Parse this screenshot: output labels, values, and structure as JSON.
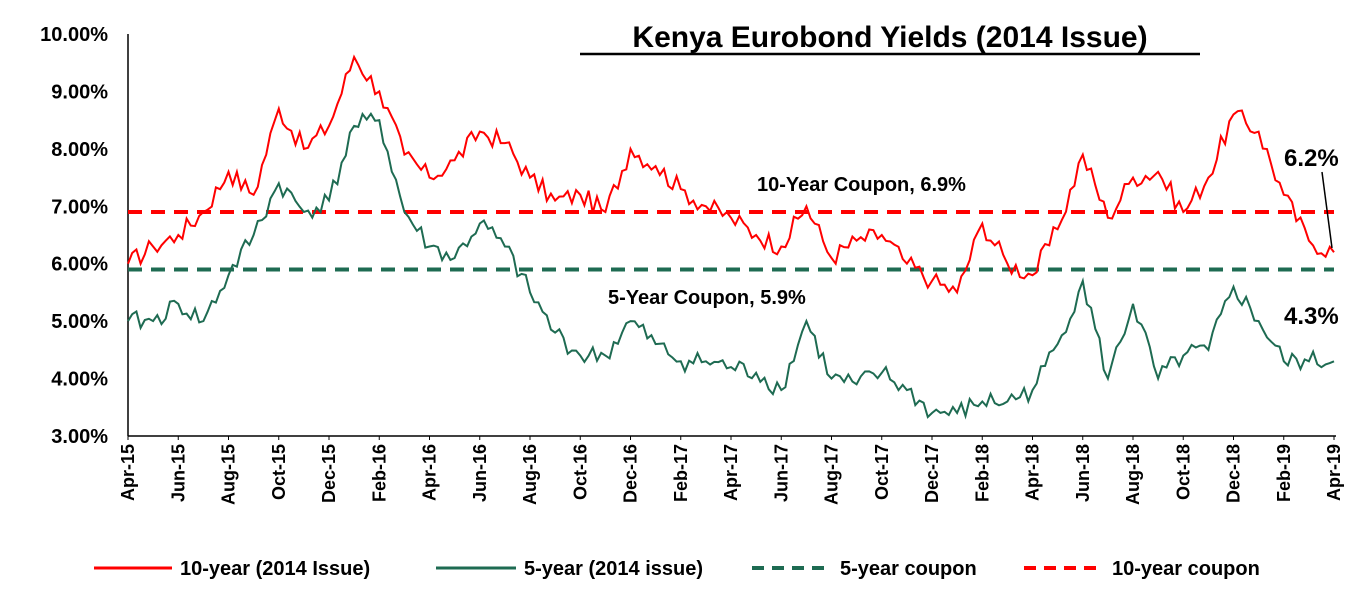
{
  "chart_data": {
    "type": "line",
    "title": "Kenya Eurobond  Yields (2014 Issue)",
    "xlabel": "",
    "ylabel": "",
    "ylim": [
      3.0,
      10.0
    ],
    "y_ticks": [
      "3.00%",
      "4.00%",
      "5.00%",
      "6.00%",
      "7.00%",
      "8.00%",
      "9.00%",
      "10.00%"
    ],
    "x_ticks": [
      "Apr-15",
      "Jun-15",
      "Aug-15",
      "Oct-15",
      "Dec-15",
      "Feb-16",
      "Apr-16",
      "Jun-16",
      "Aug-16",
      "Oct-16",
      "Dec-16",
      "Feb-17",
      "Apr-17",
      "Jun-17",
      "Aug-17",
      "Oct-17",
      "Dec-17",
      "Feb-18",
      "Apr-18",
      "Jun-18",
      "Aug-18",
      "Oct-18",
      "Dec-18",
      "Feb-19",
      "Apr-19"
    ],
    "grid": false,
    "legend_position": "bottom",
    "series": [
      {
        "name": "10-year (2014 Issue)",
        "color": "#ff0000",
        "style": "solid",
        "x": [
          "Apr-15",
          "May-15",
          "Jun-15",
          "Jul-15",
          "Aug-15",
          "Sep-15",
          "Oct-15",
          "Nov-15",
          "Dec-15",
          "Jan-16",
          "Feb-16",
          "Mar-16",
          "Apr-16",
          "May-16",
          "Jun-16",
          "Jul-16",
          "Aug-16",
          "Sep-16",
          "Oct-16",
          "Nov-16",
          "Dec-16",
          "Jan-17",
          "Feb-17",
          "Mar-17",
          "Apr-17",
          "May-17",
          "Jun-17",
          "Jul-17",
          "Aug-17",
          "Sep-17",
          "Oct-17",
          "Nov-17",
          "Dec-17",
          "Jan-18",
          "Feb-18",
          "Mar-18",
          "Apr-18",
          "May-18",
          "Jun-18",
          "Jul-18",
          "Aug-18",
          "Sep-18",
          "Oct-18",
          "Nov-18",
          "Dec-18",
          "Jan-19",
          "Feb-19",
          "Mar-19",
          "Apr-19"
        ],
        "values": [
          6.0,
          6.3,
          6.5,
          6.9,
          7.6,
          7.2,
          8.7,
          8.0,
          8.4,
          9.6,
          9.0,
          7.9,
          7.5,
          7.8,
          8.3,
          8.1,
          7.5,
          7.1,
          7.2,
          6.9,
          8.0,
          7.7,
          7.3,
          7.0,
          6.8,
          6.5,
          6.3,
          7.0,
          6.1,
          6.4,
          6.5,
          6.0,
          5.7,
          5.5,
          6.7,
          6.0,
          5.8,
          6.6,
          7.9,
          6.8,
          7.5,
          7.6,
          6.9,
          7.5,
          8.6,
          8.3,
          7.2,
          6.4,
          6.2
        ]
      },
      {
        "name": "5-year (2014 issue)",
        "color": "#1e6b52",
        "style": "solid",
        "x": [
          "Apr-15",
          "May-15",
          "Jun-15",
          "Jul-15",
          "Aug-15",
          "Sep-15",
          "Oct-15",
          "Nov-15",
          "Dec-15",
          "Jan-16",
          "Feb-16",
          "Mar-16",
          "Apr-16",
          "May-16",
          "Jun-16",
          "Jul-16",
          "Aug-16",
          "Sep-16",
          "Oct-16",
          "Nov-16",
          "Dec-16",
          "Jan-17",
          "Feb-17",
          "Mar-17",
          "Apr-17",
          "May-17",
          "Jun-17",
          "Jul-17",
          "Aug-17",
          "Sep-17",
          "Oct-17",
          "Nov-17",
          "Dec-17",
          "Jan-18",
          "Feb-18",
          "Mar-18",
          "Apr-18",
          "May-18",
          "Jun-18",
          "Jul-18",
          "Aug-18",
          "Sep-18",
          "Oct-18",
          "Nov-18",
          "Dec-18",
          "Jan-19",
          "Feb-19",
          "Mar-19",
          "Apr-19"
        ],
        "values": [
          5.0,
          5.0,
          5.3,
          5.0,
          5.8,
          6.5,
          7.4,
          6.9,
          7.1,
          8.4,
          8.5,
          6.9,
          6.3,
          6.1,
          6.7,
          6.3,
          5.5,
          4.8,
          4.4,
          4.4,
          5.0,
          4.6,
          4.3,
          4.3,
          4.2,
          4.1,
          3.8,
          5.0,
          4.0,
          3.9,
          4.1,
          3.8,
          3.4,
          3.4,
          3.6,
          3.6,
          3.8,
          4.6,
          5.7,
          4.0,
          5.3,
          4.0,
          4.4,
          4.5,
          5.6,
          5.0,
          4.3,
          4.3,
          4.3
        ]
      },
      {
        "name": "5-year coupon",
        "color": "#1e6b52",
        "style": "dashed",
        "value": 5.9
      },
      {
        "name": "10-year coupon",
        "color": "#ff0000",
        "style": "dashed",
        "value": 6.9
      }
    ],
    "annotations": {
      "ten_year_coupon": "10-Year Coupon, 6.9%",
      "five_year_coupon": "5-Year Coupon, 5.9%",
      "end_ten_year": "6.2%",
      "end_five_year": "4.3%"
    }
  }
}
